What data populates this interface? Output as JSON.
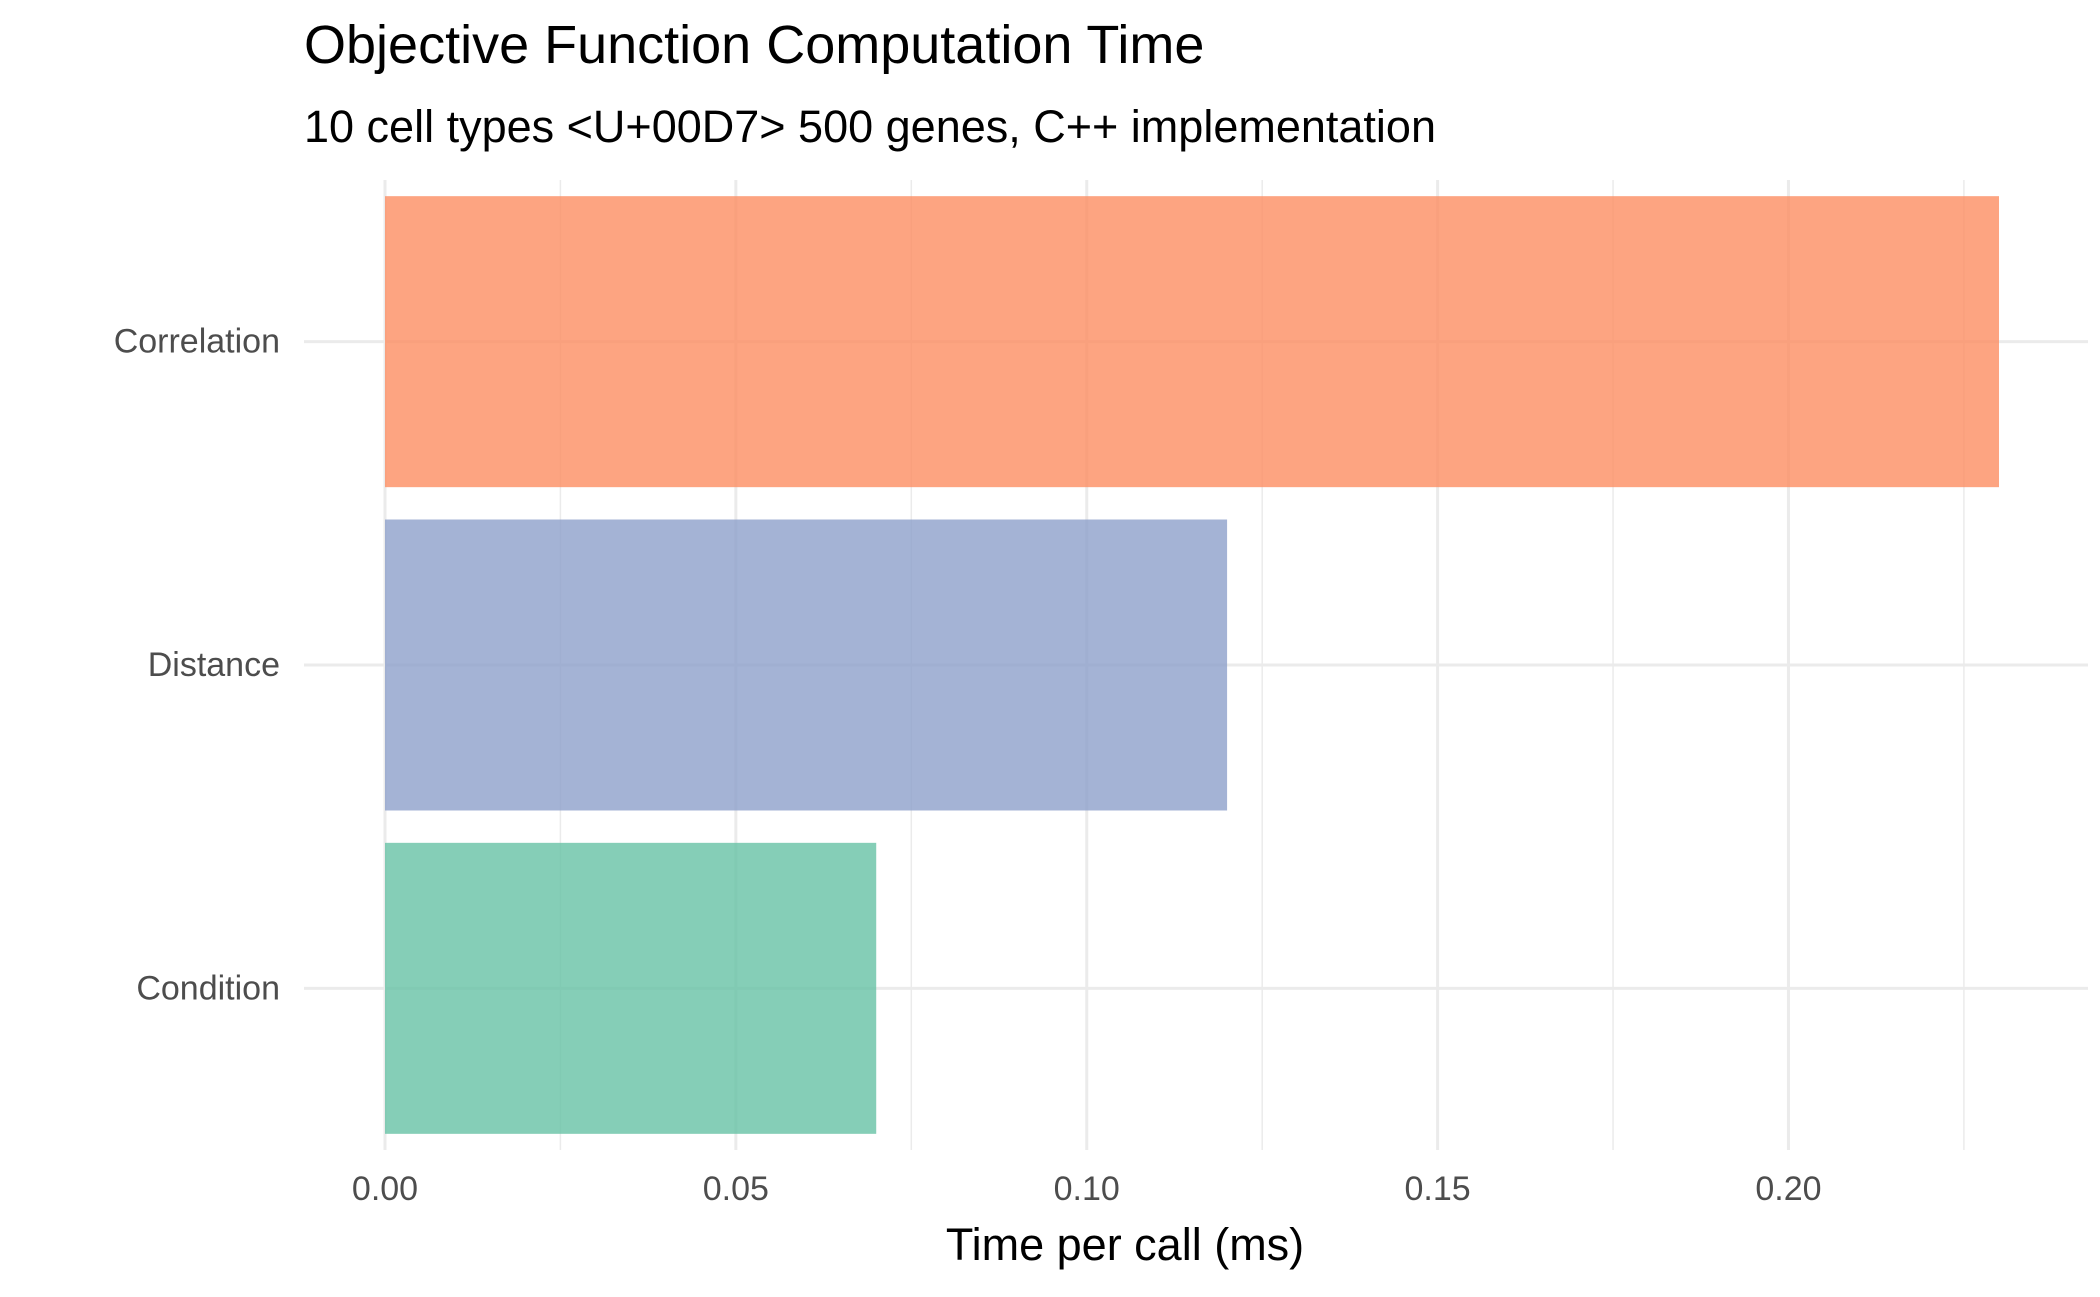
{
  "chart_data": {
    "type": "bar",
    "orientation": "horizontal",
    "title": "Objective Function Computation Time",
    "subtitle": "10 cell types <U+00D7> 500 genes, C++ implementation",
    "xlabel": "Time per call (ms)",
    "ylabel": "",
    "categories": [
      "Condition",
      "Distance",
      "Correlation"
    ],
    "values": [
      0.07,
      0.12,
      0.23
    ],
    "colors": [
      "#66c2a5",
      "#8da0cb",
      "#fc8d62"
    ],
    "xlim": [
      0,
      0.23
    ],
    "xticks": [
      0.0,
      0.05,
      0.1,
      0.15,
      0.2
    ],
    "xtick_labels": [
      "0.00",
      "0.05",
      "0.10",
      "0.15",
      "0.20"
    ],
    "grid": true,
    "legend": "none"
  }
}
